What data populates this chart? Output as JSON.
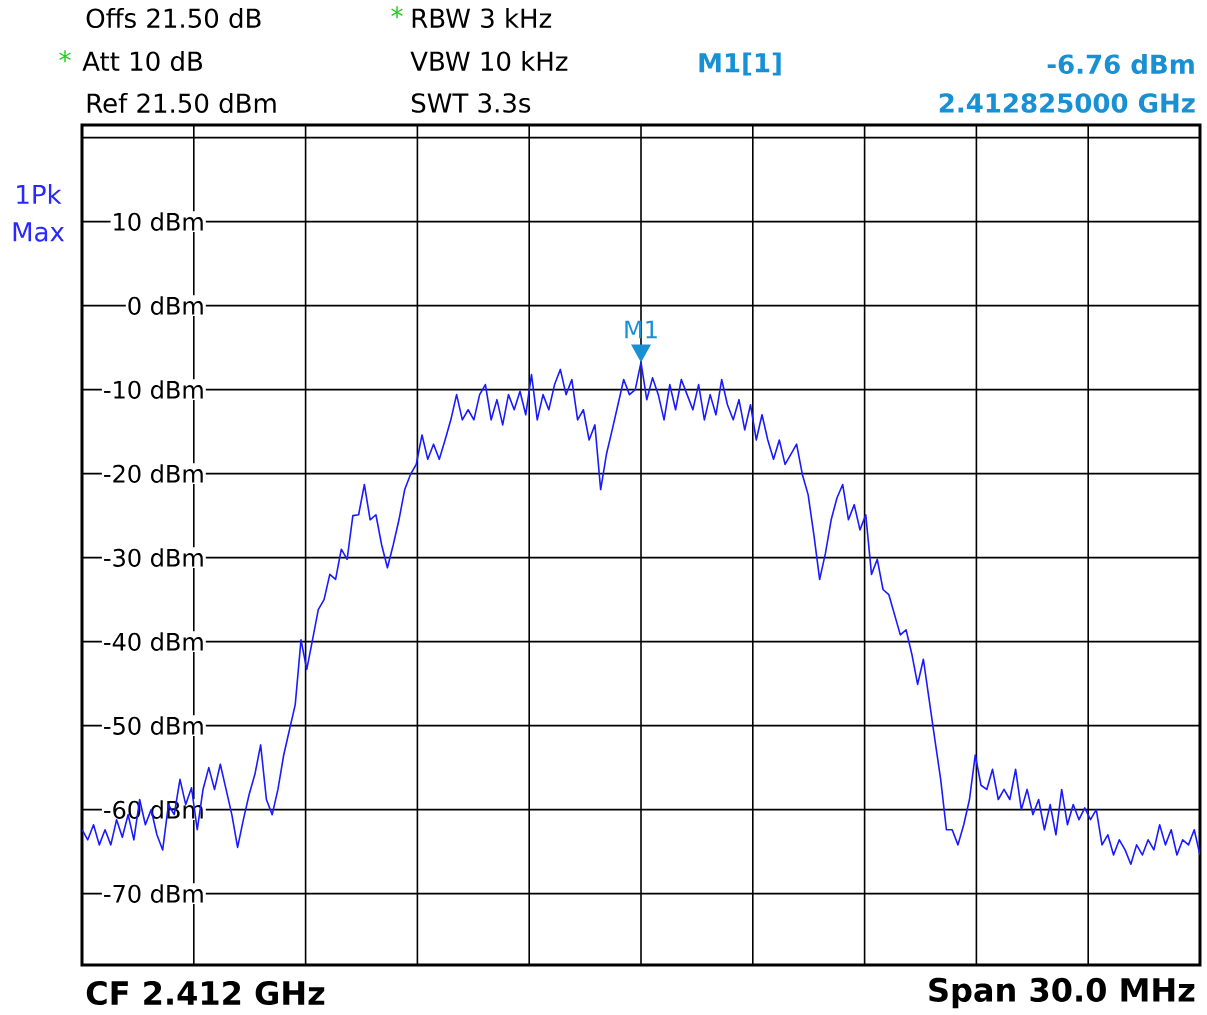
{
  "chart_data": {
    "type": "line",
    "categories": [
      null,
      null,
      null,
      null,
      null,
      null,
      null,
      null,
      null,
      null,
      null,
      null,
      null,
      null,
      null,
      null,
      null,
      null,
      null,
      null,
      null,
      null,
      null,
      null,
      null,
      null,
      null,
      null,
      null,
      null,
      null,
      null,
      null,
      null,
      null,
      null,
      null,
      null,
      null,
      null,
      null,
      null,
      null,
      null,
      null,
      null,
      null,
      null,
      null,
      null,
      null,
      null,
      null,
      null,
      null,
      null,
      null,
      null,
      null,
      null,
      null,
      null,
      null,
      null,
      null,
      null,
      null,
      null,
      null,
      null,
      null,
      null,
      null,
      null,
      null,
      null,
      null,
      null,
      null,
      null,
      null,
      null,
      null,
      null,
      null,
      null,
      null,
      null,
      null,
      null,
      null,
      null,
      null,
      null,
      null,
      null,
      null,
      null,
      null,
      null,
      null,
      null,
      null,
      null,
      null,
      null,
      null,
      null,
      null,
      null,
      null,
      null,
      null,
      null,
      null,
      null,
      null,
      null,
      null,
      null,
      null,
      null,
      null,
      null,
      null,
      null,
      null,
      null,
      null,
      null,
      null,
      null,
      null,
      null,
      null,
      null,
      null,
      null,
      null,
      null,
      null,
      null,
      null,
      null,
      null,
      null,
      null,
      null,
      null,
      null,
      null,
      null,
      null,
      null,
      null,
      null,
      null,
      null,
      null,
      null,
      null,
      null,
      null,
      null,
      null,
      null,
      null,
      null,
      null,
      null,
      null,
      null,
      null,
      null,
      null,
      null,
      null,
      null,
      null,
      null,
      null,
      null,
      null,
      null,
      null,
      null,
      null,
      null,
      null,
      null,
      null,
      null,
      null,
      null,
      null
    ],
    "series": [
      {
        "color": "#1a1aff",
        "values": [
          -62.4,
          -63.6,
          -61.8,
          -64.2,
          -62.4,
          -64.2,
          -61.2,
          -63.3,
          -60.6,
          -63.6,
          -58.8,
          -61.8,
          -60.0,
          -63.0,
          -64.8,
          -59.4,
          -60.6,
          -56.4,
          -59.4,
          -57.4,
          -62.4,
          -57.6,
          -55.0,
          -57.6,
          -54.6,
          -57.6,
          -60.6,
          -64.5,
          -61.2,
          -58.2,
          -55.8,
          -52.3,
          -58.8,
          -60.6,
          -57.6,
          -53.5,
          -50.5,
          -47.5,
          -39.8,
          -43.3,
          -39.8,
          -36.2,
          -35.0,
          -32.0,
          -32.6,
          -29.0,
          -30.2,
          -25.0,
          -24.9,
          -21.3,
          -25.5,
          -24.9,
          -28.5,
          -31.2,
          -28.5,
          -25.5,
          -21.9,
          -20.1,
          -18.9,
          -15.4,
          -18.3,
          -16.5,
          -18.3,
          -16.0,
          -13.6,
          -10.6,
          -13.6,
          -12.4,
          -13.6,
          -10.6,
          -9.4,
          -13.6,
          -11.2,
          -14.2,
          -10.6,
          -12.4,
          -10.2,
          -13.0,
          -8.2,
          -13.6,
          -10.6,
          -12.4,
          -9.4,
          -7.6,
          -10.6,
          -8.8,
          -13.6,
          -12.4,
          -16.0,
          -14.2,
          -21.9,
          -17.7,
          -14.8,
          -11.8,
          -8.8,
          -10.6,
          -10.0,
          -6.76,
          -11.2,
          -8.6,
          -10.6,
          -13.6,
          -9.4,
          -12.4,
          -8.8,
          -10.6,
          -12.4,
          -9.4,
          -13.6,
          -10.6,
          -13.0,
          -8.8,
          -11.8,
          -13.6,
          -11.2,
          -14.8,
          -11.8,
          -16.0,
          -13.0,
          -16.0,
          -18.3,
          -16.0,
          -18.9,
          -17.7,
          -16.5,
          -20.1,
          -22.5,
          -27.3,
          -32.6,
          -29.5,
          -25.5,
          -22.9,
          -21.3,
          -25.5,
          -23.7,
          -26.7,
          -24.9,
          -32.0,
          -30.2,
          -33.8,
          -34.4,
          -36.8,
          -39.2,
          -38.6,
          -41.5,
          -45.1,
          -42.1,
          -46.9,
          -51.7,
          -56.4,
          -62.4,
          -62.4,
          -64.2,
          -61.8,
          -58.8,
          -53.5,
          -57.1,
          -57.6,
          -55.2,
          -58.8,
          -57.6,
          -58.8,
          -55.2,
          -60.0,
          -57.6,
          -60.6,
          -58.8,
          -62.4,
          -59.4,
          -63.0,
          -57.6,
          -61.8,
          -59.4,
          -61.2,
          -59.8,
          -61.2,
          -60.0,
          -64.2,
          -63.0,
          -65.4,
          -63.6,
          -64.8,
          -66.5,
          -64.2,
          -65.4,
          -63.6,
          -64.8,
          -61.8,
          -64.2,
          -62.4,
          -65.4,
          -63.6,
          -64.2,
          -62.4,
          -65.4
        ]
      }
    ],
    "ylim": [
      -78.5,
      21.5
    ],
    "yticks": [
      {
        "value": -70,
        "label": "-70 dBm"
      },
      {
        "value": -60,
        "label": "-60 dBm"
      },
      {
        "value": -50,
        "label": "-50 dBm"
      },
      {
        "value": -40,
        "label": "-40 dBm"
      },
      {
        "value": -30,
        "label": "-30 dBm"
      },
      {
        "value": -20,
        "label": "-20 dBm"
      },
      {
        "value": -10,
        "label": "-10 dBm"
      },
      {
        "value": 0,
        "label": "0 dBm"
      },
      {
        "value": 10,
        "label": "10 dBm"
      },
      {
        "value": 20,
        "label": null
      }
    ],
    "tick_labels": "y",
    "grid": true,
    "annotations": [
      "Offs 21.50 dB",
      "*",
      "RBW 3 kHz",
      "*",
      "Att 10 dB",
      "VBW 10 kHz",
      "M1[1]",
      "-6.76 dBm",
      "Ref 21.50 dBm",
      "SWT 3.3s",
      "2.412825000 GHz",
      "1Pk",
      "Max",
      "CF 2.412 GHz",
      "Span 30.0 MHz",
      "M1"
    ]
  }
}
